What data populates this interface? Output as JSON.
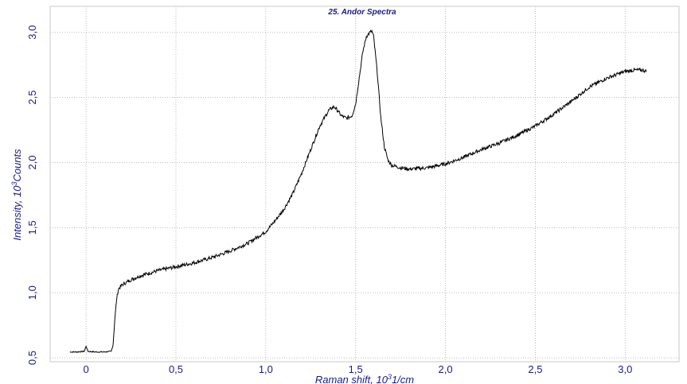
{
  "chart_data": {
    "type": "line",
    "title": "25. Andor Spectra",
    "xlabel": "Raman shift, 10",
    "xlabel_sup": "3",
    "xlabel_unit": "1/cm",
    "ylabel": "Intensity, 10",
    "ylabel_sup": "3",
    "ylabel_unit": "Counts",
    "xlim": [
      -0.2,
      3.3
    ],
    "ylim": [
      0.47,
      3.2
    ],
    "x_ticks": [
      0,
      0.5,
      1.0,
      1.5,
      2.0,
      2.5,
      3.0
    ],
    "x_tick_labels": [
      "0",
      "0,5",
      "1,0",
      "1,5",
      "2,0",
      "2,5",
      "3,0"
    ],
    "y_ticks": [
      0.5,
      1.0,
      1.5,
      2.0,
      2.5,
      3.0
    ],
    "y_tick_labels": [
      "0,5",
      "1,0",
      "1,5",
      "2,0",
      "2,5",
      "3,0"
    ],
    "grid": true,
    "legend": "none",
    "line_color": "#000000",
    "text_color": "#1a1a8c",
    "series": [
      {
        "x": [
          -0.09,
          -0.05,
          -0.01,
          0.0,
          0.01,
          0.05,
          0.1,
          0.14,
          0.15,
          0.16,
          0.17,
          0.18,
          0.2,
          0.25,
          0.3,
          0.4,
          0.5,
          0.6,
          0.7,
          0.8,
          0.9,
          1.0,
          1.05,
          1.1,
          1.15,
          1.2,
          1.25,
          1.3,
          1.35,
          1.38,
          1.4,
          1.42,
          1.45,
          1.48,
          1.5,
          1.52,
          1.54,
          1.56,
          1.58,
          1.59,
          1.6,
          1.62,
          1.64,
          1.66,
          1.68,
          1.7,
          1.75,
          1.8,
          1.9,
          2.0,
          2.1,
          2.2,
          2.3,
          2.4,
          2.5,
          2.6,
          2.7,
          2.8,
          2.9,
          3.0,
          3.05,
          3.1,
          3.12
        ],
        "y": [
          0.545,
          0.545,
          0.55,
          0.59,
          0.55,
          0.545,
          0.545,
          0.55,
          0.6,
          0.8,
          0.95,
          1.03,
          1.06,
          1.1,
          1.13,
          1.17,
          1.2,
          1.23,
          1.27,
          1.32,
          1.38,
          1.47,
          1.55,
          1.64,
          1.76,
          1.92,
          2.1,
          2.28,
          2.4,
          2.43,
          2.4,
          2.36,
          2.34,
          2.36,
          2.45,
          2.65,
          2.85,
          2.97,
          3.0,
          3.01,
          2.97,
          2.7,
          2.35,
          2.12,
          2.02,
          1.98,
          1.96,
          1.95,
          1.96,
          1.99,
          2.04,
          2.1,
          2.15,
          2.21,
          2.28,
          2.37,
          2.47,
          2.58,
          2.65,
          2.7,
          2.71,
          2.71,
          2.7
        ]
      }
    ]
  }
}
